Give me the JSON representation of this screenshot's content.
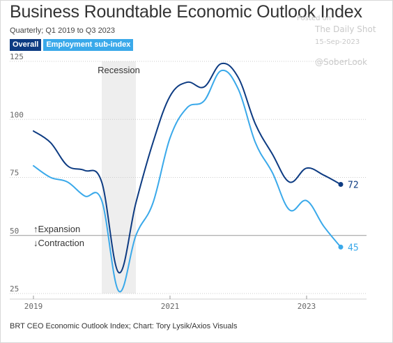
{
  "header": {
    "title": "Business Roundtable Economic Outlook Index",
    "subtitle": "Quarterly; Q1 2019 to Q3 2023",
    "legend_overall": "Overall",
    "legend_employment": "Employment sub-index"
  },
  "watermark": {
    "line1": "Posted on",
    "line2": "The Daily Shot",
    "line3": "15-Sep-2023",
    "line4": "@SoberLook"
  },
  "source": "BRT CEO Economic Outlook Index; Chart: Tory Lysik/Axios Visuals",
  "colors": {
    "overall": "#0d3b82",
    "employment": "#3aa9ea",
    "recession_band": "#eeeeee",
    "grid": "#cccccc"
  },
  "chart_data": {
    "type": "line",
    "title": "Business Roundtable Economic Outlook Index",
    "subtitle": "Quarterly; Q1 2019 to Q3 2023",
    "x": [
      "2019Q1",
      "2019Q2",
      "2019Q3",
      "2019Q4",
      "2020Q1",
      "2020Q2",
      "2020Q3",
      "2020Q4",
      "2021Q1",
      "2021Q2",
      "2021Q3",
      "2021Q4",
      "2022Q1",
      "2022Q2",
      "2022Q3",
      "2022Q4",
      "2023Q1",
      "2023Q2",
      "2023Q3"
    ],
    "series": [
      {
        "name": "Overall",
        "color": "#0d3b82",
        "values": [
          95,
          90,
          80,
          78,
          73,
          34,
          64,
          90,
          110,
          116,
          114,
          124,
          118,
          98,
          85,
          73,
          79,
          76,
          72
        ]
      },
      {
        "name": "Employment sub-index",
        "color": "#3aa9ea",
        "values": [
          80,
          75,
          73,
          67,
          65,
          26,
          50,
          64,
          92,
          105,
          108,
          121,
          113,
          90,
          77,
          61,
          65,
          54,
          45
        ]
      }
    ],
    "x_ticks": [
      "2019",
      "2021",
      "2023"
    ],
    "y_ticks": [
      25,
      50,
      75,
      100,
      125
    ],
    "ylim": [
      25,
      125
    ],
    "grid": true,
    "recession": {
      "label": "Recession",
      "start": "2020Q1",
      "end": "2020Q3"
    },
    "reference": {
      "value": 50,
      "above_label": "↑Expansion",
      "below_label": "↓Contraction"
    },
    "end_labels": {
      "overall": "72",
      "employment": "45"
    }
  }
}
